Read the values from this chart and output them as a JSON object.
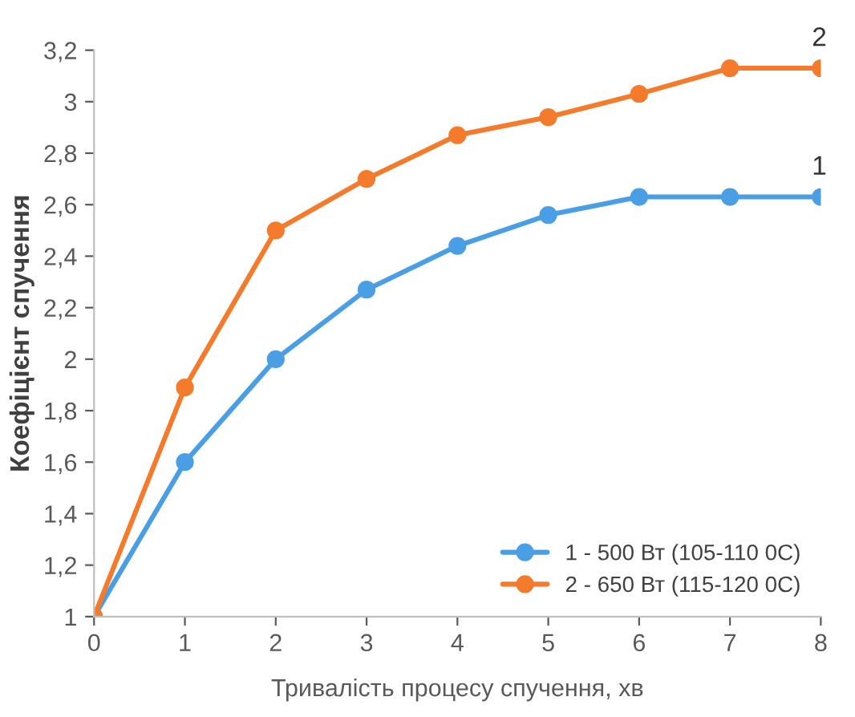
{
  "chart_data": {
    "type": "line",
    "xlabel": "Тривалість процесу спучення, хв",
    "ylabel": "Коефіцієнт спучення",
    "x": [
      0,
      1,
      2,
      3,
      4,
      5,
      6,
      7,
      8
    ],
    "series": [
      {
        "name": "1 - 500 Вт (105-110 0С)",
        "color": "#4a9ee4",
        "values": [
          1,
          1.6,
          2.0,
          2.27,
          2.44,
          2.56,
          2.63,
          2.63,
          2.63
        ]
      },
      {
        "name": "2 - 650 Вт (115-120 0С)",
        "color": "#f47b2c",
        "values": [
          1,
          1.89,
          2.5,
          2.7,
          2.87,
          2.94,
          3.03,
          3.13,
          3.13
        ]
      }
    ],
    "xlim": [
      0,
      8
    ],
    "xticks": [
      0,
      1,
      2,
      3,
      4,
      5,
      6,
      7,
      8
    ],
    "ylim": [
      1,
      3.2
    ],
    "yticks": [
      {
        "value": 1,
        "label": "1"
      },
      {
        "value": 1.2,
        "label": "1,2"
      },
      {
        "value": 1.4,
        "label": "1,4"
      },
      {
        "value": 1.6,
        "label": "1,6"
      },
      {
        "value": 1.8,
        "label": "1,8"
      },
      {
        "value": 2,
        "label": "2"
      },
      {
        "value": 2.2,
        "label": "2,2"
      },
      {
        "value": 2.4,
        "label": "2,4"
      },
      {
        "value": 2.6,
        "label": "2,6"
      },
      {
        "value": 2.8,
        "label": "2,8"
      },
      {
        "value": 3,
        "label": "3"
      },
      {
        "value": 3.2,
        "label": "3,2"
      }
    ],
    "annotations": [
      {
        "text": "1",
        "x": 8,
        "y": 2.63
      },
      {
        "text": "2",
        "x": 8,
        "y": 3.13
      }
    ],
    "grid": false,
    "legend": "bottom right",
    "marker": "circle",
    "line_style": "solid"
  }
}
